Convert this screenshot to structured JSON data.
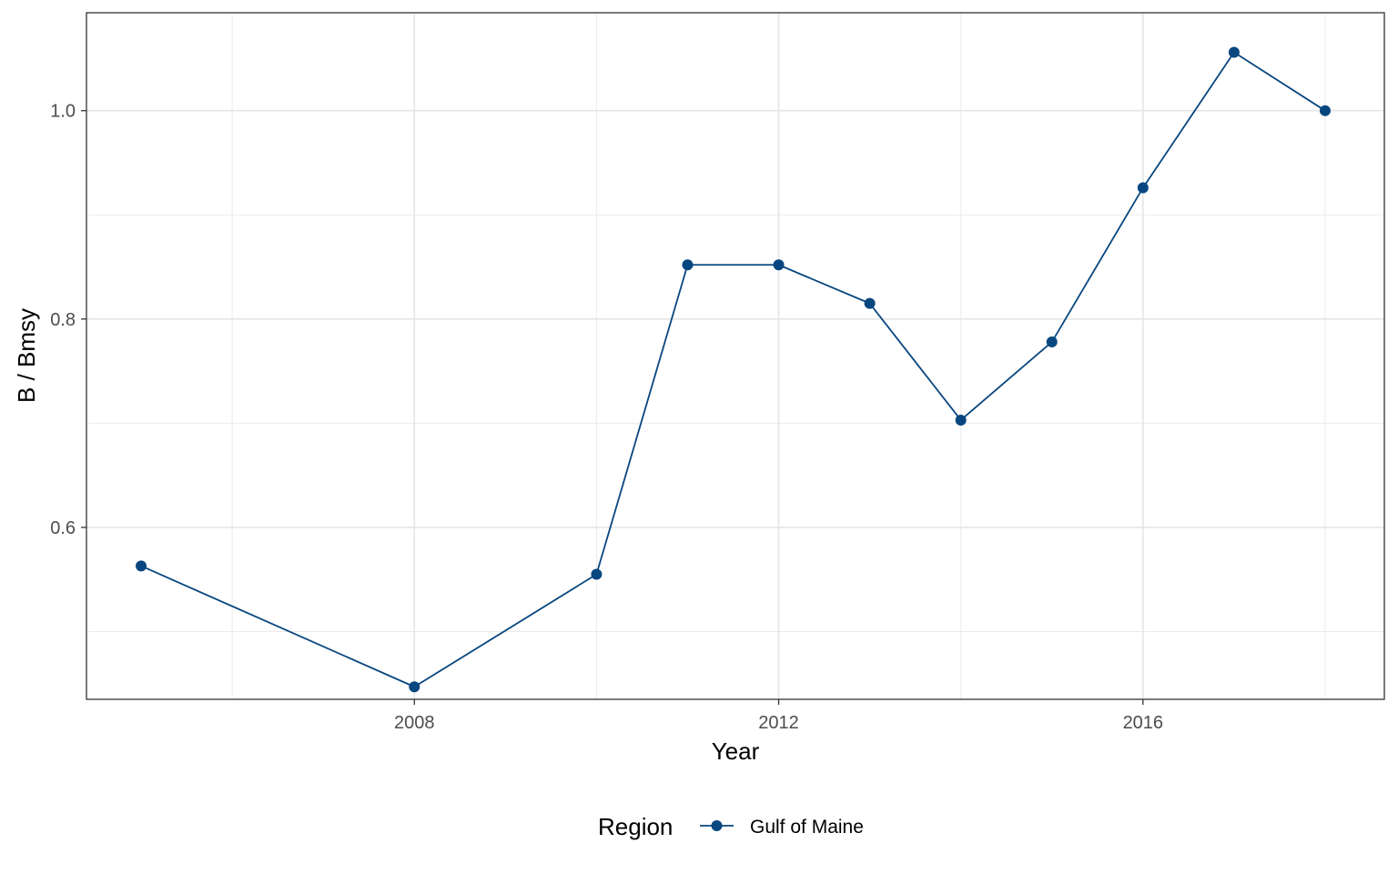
{
  "chart_data": {
    "type": "line",
    "xlabel": "Year",
    "ylabel": "B / Bmsy",
    "xlim": [
      2004.4,
      2018.65
    ],
    "ylim": [
      0.435,
      1.094
    ],
    "x_ticks": [
      2008,
      2012,
      2016
    ],
    "x_tick_labels": [
      "2008",
      "2012",
      "2016"
    ],
    "x_minor_ticks": [
      2006,
      2010,
      2014,
      2018
    ],
    "y_ticks": [
      0.6,
      0.8,
      1.0
    ],
    "y_tick_labels": [
      "0.6",
      "0.8",
      "1.0"
    ],
    "y_minor_ticks": [
      0.5,
      0.7,
      0.9
    ],
    "grid": true,
    "legend": {
      "title": "Region",
      "position": "bottom"
    },
    "series": [
      {
        "name": "Gulf of Maine",
        "color": "#08467f",
        "x": [
          2005,
          2008,
          2010,
          2011,
          2012,
          2013,
          2014,
          2015,
          2016,
          2017,
          2018
        ],
        "y": [
          0.563,
          0.447,
          0.555,
          0.852,
          0.852,
          0.815,
          0.703,
          0.778,
          0.926,
          1.056,
          1.0
        ]
      }
    ]
  }
}
